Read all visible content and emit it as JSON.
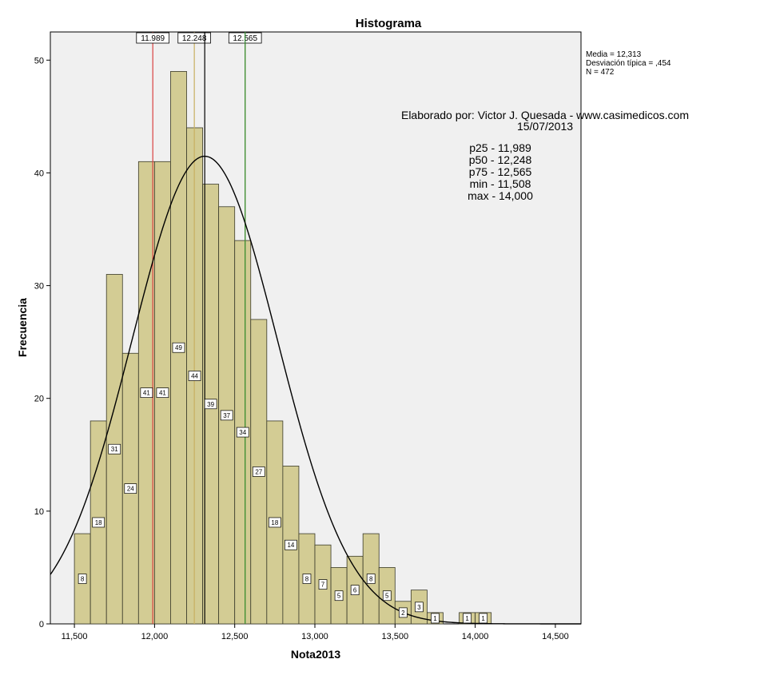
{
  "chart_data": {
    "type": "bar",
    "title": "Histograma",
    "xlabel": "Nota2013",
    "ylabel": "Frecuencia",
    "xlim": [
      11350,
      14660
    ],
    "ylim": [
      0,
      52.5
    ],
    "bin_width": 100,
    "bins": [
      {
        "start": 11500,
        "value": 8,
        "label": "8"
      },
      {
        "start": 11600,
        "value": 18,
        "label": "18"
      },
      {
        "start": 11700,
        "value": 31,
        "label": "31"
      },
      {
        "start": 11800,
        "value": 24,
        "label": "24"
      },
      {
        "start": 11900,
        "value": 41,
        "label": "41"
      },
      {
        "start": 12000,
        "value": 41,
        "label": "41"
      },
      {
        "start": 12100,
        "value": 49,
        "label": "49"
      },
      {
        "start": 12200,
        "value": 44,
        "label": "44"
      },
      {
        "start": 12300,
        "value": 39,
        "label": "39"
      },
      {
        "start": 12400,
        "value": 37,
        "label": "37"
      },
      {
        "start": 12500,
        "value": 34,
        "label": "34"
      },
      {
        "start": 12600,
        "value": 27,
        "label": "27"
      },
      {
        "start": 12700,
        "value": 18,
        "label": "18"
      },
      {
        "start": 12800,
        "value": 14,
        "label": "14"
      },
      {
        "start": 12900,
        "value": 8,
        "label": "8"
      },
      {
        "start": 13000,
        "value": 7,
        "label": "7"
      },
      {
        "start": 13100,
        "value": 5,
        "label": "5"
      },
      {
        "start": 13200,
        "value": 6,
        "label": "6"
      },
      {
        "start": 13300,
        "value": 8,
        "label": "8"
      },
      {
        "start": 13400,
        "value": 5,
        "label": "5"
      },
      {
        "start": 13500,
        "value": 2,
        "label": "2"
      },
      {
        "start": 13600,
        "value": 3,
        "label": "3"
      },
      {
        "start": 13700,
        "value": 1,
        "label": "1"
      },
      {
        "start": 13900,
        "value": 1,
        "label": "1"
      },
      {
        "start": 14000,
        "value": 1,
        "label": "1"
      }
    ],
    "x_ticks": [
      {
        "value": 11500,
        "label": "11,500"
      },
      {
        "value": 12000,
        "label": "12,000"
      },
      {
        "value": 12500,
        "label": "12,500"
      },
      {
        "value": 13000,
        "label": "13,000"
      },
      {
        "value": 13500,
        "label": "13,500"
      },
      {
        "value": 14000,
        "label": "14,000"
      },
      {
        "value": 14500,
        "label": "14,500"
      }
    ],
    "y_ticks": [
      {
        "value": 0,
        "label": "0"
      },
      {
        "value": 10,
        "label": "10"
      },
      {
        "value": 20,
        "label": "20"
      },
      {
        "value": 30,
        "label": "30"
      },
      {
        "value": 40,
        "label": "40"
      },
      {
        "value": 50,
        "label": "50"
      }
    ],
    "normal_curve": {
      "mean": 12313,
      "sd": 454,
      "n": 472,
      "bin_width": 100
    },
    "reference_lines": [
      {
        "value": 11989,
        "label": "11.989",
        "color": "#d94040"
      },
      {
        "value": 12248,
        "label": "12.248",
        "color": "#c8b060"
      },
      {
        "value": 12565,
        "label": "12.565",
        "color": "#c8b060"
      },
      {
        "value": 12313,
        "label": "",
        "color": "#000000"
      },
      {
        "value": 12565,
        "label": "",
        "color": "#2e8b2e"
      }
    ],
    "stats_box": [
      "Media = 12,313",
      "Desviación típica = ,454",
      "N = 472"
    ],
    "annotation_lines": [
      "Elaborado por: Victor J. Quesada - www.casimedicos.com",
      "15/07/2013",
      "p25 - 11,989",
      "p50 - 12,248",
      "p75 - 12,565",
      "min - 11,508",
      "max - 14,000"
    ],
    "colors": {
      "bar_fill": "#d3cc94",
      "bar_stroke": "#3a3a2a",
      "plot_bg": "#f0f0f0",
      "curve": "#000000"
    }
  }
}
